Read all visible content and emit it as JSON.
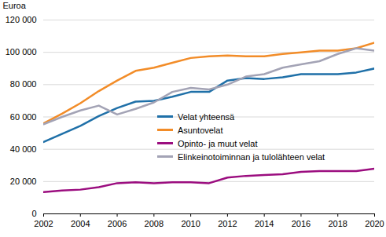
{
  "chart_data": {
    "type": "line",
    "y_label": "Euroa",
    "x": [
      2002,
      2003,
      2004,
      2005,
      2006,
      2007,
      2008,
      2009,
      2010,
      2011,
      2012,
      2013,
      2014,
      2015,
      2016,
      2017,
      2018,
      2019,
      2020
    ],
    "series": [
      {
        "name": "Velat yhteensä",
        "color": "#1f70a8",
        "values": [
          44500,
          49500,
          54500,
          60500,
          65500,
          69500,
          70000,
          72500,
          75500,
          75500,
          82500,
          84000,
          83500,
          84500,
          86500,
          86500,
          86500,
          87500,
          90000
        ]
      },
      {
        "name": "Asuntovelat",
        "color": "#f28c28",
        "values": [
          56000,
          62000,
          68500,
          76000,
          82500,
          88500,
          90500,
          93500,
          96500,
          97500,
          98000,
          97500,
          97500,
          99000,
          100000,
          101000,
          101000,
          102500,
          106000
        ]
      },
      {
        "name": "Opinto- ja muut velat",
        "color": "#9b0d7f",
        "values": [
          13500,
          14500,
          15000,
          16500,
          19000,
          19500,
          19000,
          19500,
          19500,
          19000,
          22500,
          23500,
          24000,
          24500,
          26000,
          26500,
          26500,
          26500,
          28000
        ]
      },
      {
        "name": "Elinkeinotoiminnan ja tulolähteen velat",
        "color": "#a3a3b5",
        "values": [
          55500,
          60000,
          64000,
          67000,
          61500,
          65000,
          69000,
          75500,
          78000,
          77000,
          80000,
          85000,
          86500,
          90500,
          92500,
          94500,
          99000,
          102500,
          101000
        ]
      }
    ],
    "xlim": [
      2002,
      2020
    ],
    "xticks": [
      2002,
      2004,
      2006,
      2008,
      2010,
      2012,
      2014,
      2016,
      2018,
      2020
    ],
    "ylim": [
      0,
      120000
    ],
    "yticks": [
      0,
      {
        "value": 20000,
        "label": "20 000"
      },
      {
        "value": 40000,
        "label": "40 000"
      },
      {
        "value": 60000,
        "label": "60 000"
      },
      {
        "value": 80000,
        "label": "80 000"
      },
      {
        "value": 100000,
        "label": "100 000"
      },
      {
        "value": 120000,
        "label": "120 000"
      }
    ],
    "grid": true,
    "legend": "right"
  }
}
